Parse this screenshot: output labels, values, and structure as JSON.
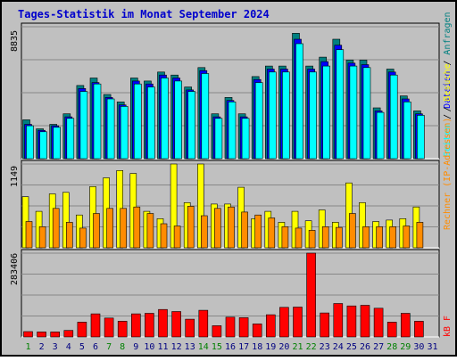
{
  "title": "Tages-Statistik im Monat September 2024",
  "colors": {
    "page_bg": "#c0c0c0",
    "panel_bg": "#c0c0c0",
    "title": "#0000cc",
    "requests_bar": "#008080",
    "files_bar": "#0000ff",
    "pages_bar": "#00ffff",
    "visits_bar": "#ffff00",
    "hosts_bar": "#ff8c00",
    "kbytes_bar": "#ff0000",
    "weekday_label": "#000080",
    "weekend_label": "#008000"
  },
  "legend": {
    "requests": "Anfragen",
    "files": "Dateien",
    "pages": "Seiten",
    "visits": "Besuche",
    "hosts": "Rechner (IP-Adressen)",
    "kbytes": "kB F",
    "sep": " / "
  },
  "chart_data": [
    {
      "type": "bar",
      "panel": "top",
      "y_max_label": "8835",
      "ylim": [
        0,
        8835
      ],
      "categories": [
        "1",
        "2",
        "3",
        "4",
        "5",
        "6",
        "7",
        "8",
        "9",
        "10",
        "11",
        "12",
        "13",
        "14",
        "15",
        "16",
        "17",
        "18",
        "19",
        "20",
        "21",
        "22",
        "23",
        "24",
        "25",
        "26",
        "27",
        "28",
        "29",
        "30",
        "31"
      ],
      "weekend_days": [
        "1",
        "7",
        "8",
        "14",
        "15",
        "21",
        "22",
        "28",
        "29"
      ],
      "series": [
        {
          "name": "Anfragen",
          "values": [
            2600,
            2000,
            2300,
            3000,
            4900,
            5400,
            4300,
            3800,
            5400,
            5200,
            5800,
            5600,
            4800,
            6100,
            3000,
            4100,
            3000,
            5500,
            6200,
            6200,
            8400,
            6200,
            6800,
            8000,
            6600,
            6600,
            3400,
            6000,
            4200,
            3200,
            0
          ]
        },
        {
          "name": "Dateien",
          "values": [
            2300,
            1900,
            2200,
            2800,
            4700,
            5100,
            4100,
            3600,
            5200,
            5000,
            5600,
            5400,
            4600,
            5900,
            2800,
            3900,
            2800,
            5300,
            6000,
            6000,
            8000,
            6000,
            6500,
            7600,
            6400,
            6300,
            3200,
            5800,
            4000,
            3000,
            0
          ]
        },
        {
          "name": "Seiten",
          "values": [
            2200,
            1800,
            2100,
            2700,
            4500,
            5000,
            4000,
            3500,
            5000,
            4800,
            5400,
            5200,
            4500,
            5700,
            2700,
            3800,
            2700,
            5100,
            5800,
            5800,
            7700,
            5800,
            6200,
            7300,
            6200,
            6100,
            3100,
            5600,
            3800,
            2900,
            0
          ]
        }
      ]
    },
    {
      "type": "bar",
      "panel": "middle",
      "y_max_label": "1149",
      "ylim": [
        0,
        1149
      ],
      "series": [
        {
          "name": "Besuche",
          "values": [
            700,
            500,
            740,
            760,
            450,
            840,
            960,
            1060,
            1020,
            500,
            400,
            1149,
            620,
            1149,
            600,
            600,
            830,
            400,
            500,
            350,
            500,
            370,
            520,
            350,
            890,
            620,
            360,
            380,
            400,
            560,
            0
          ]
        },
        {
          "name": "Rechner (IP-Adressen)",
          "values": [
            360,
            290,
            540,
            350,
            270,
            470,
            540,
            540,
            560,
            470,
            330,
            300,
            570,
            440,
            540,
            560,
            490,
            450,
            410,
            290,
            270,
            240,
            290,
            280,
            470,
            290,
            290,
            290,
            300,
            350,
            0
          ]
        }
      ]
    },
    {
      "type": "bar",
      "panel": "bottom",
      "y_max_label": "283406",
      "ylim": [
        0,
        283406
      ],
      "series": [
        {
          "name": "kB F",
          "values": [
            18000,
            17000,
            17000,
            22000,
            50000,
            78000,
            64000,
            53000,
            78000,
            80000,
            93000,
            86000,
            60000,
            90000,
            38000,
            67000,
            65000,
            44000,
            75000,
            100000,
            101000,
            283406,
            81000,
            113000,
            105000,
            107000,
            97000,
            50000,
            80000,
            53000,
            0
          ]
        }
      ]
    }
  ]
}
